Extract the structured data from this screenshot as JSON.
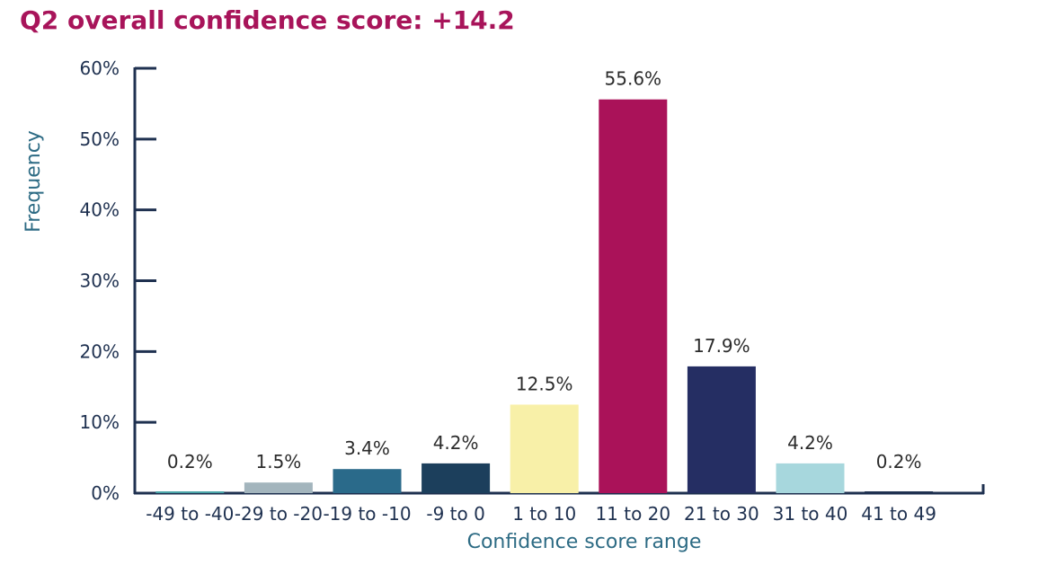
{
  "chart_data": {
    "type": "bar",
    "title": "Q2 overall confidence score: +14.2",
    "xlabel": "Confidence score range",
    "ylabel": "Frequency",
    "ylim": [
      0,
      60
    ],
    "yticks": [
      0,
      10,
      20,
      30,
      40,
      50,
      60
    ],
    "ytick_labels": [
      "0%",
      "10%",
      "20%",
      "30%",
      "40%",
      "50%",
      "60%"
    ],
    "categories": [
      "-49 to -40",
      "-29 to -20",
      "-19 to -10",
      "-9 to 0",
      "1 to 10",
      "11 to 20",
      "21 to 30",
      "31 to 40",
      "41 to 49"
    ],
    "values": [
      0.2,
      1.5,
      3.4,
      4.2,
      12.5,
      55.6,
      17.9,
      4.2,
      0.2
    ],
    "data_labels": [
      "0.2%",
      "1.5%",
      "3.4%",
      "4.2%",
      "12.5%",
      "55.6%",
      "17.9%",
      "4.2%",
      "0.2%"
    ],
    "colors": [
      "#4aa5a8",
      "#a3b5bd",
      "#2a6a8a",
      "#1c3f5c",
      "#f8f0a8",
      "#aa1259",
      "#252e63",
      "#a7d7dd",
      "#1f3150"
    ],
    "grid": false,
    "legend": "none"
  }
}
